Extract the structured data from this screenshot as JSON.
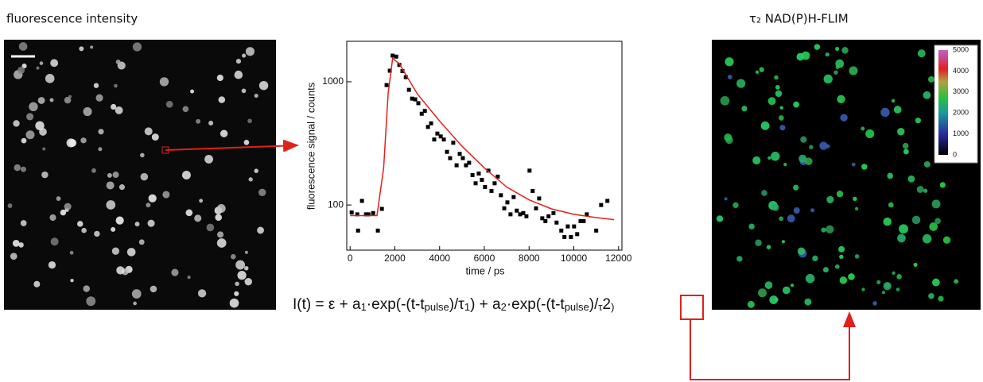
{
  "left_panel": {
    "title": "fluorescence intensity"
  },
  "right_panel": {
    "title": "τ₂ NAD(P)H-FLIM",
    "colorbar_ticks": [
      0,
      1000,
      2000,
      3000,
      4000,
      5000
    ]
  },
  "formula": [
    "I(t) = ε + a",
    "1",
    "·exp(-(t-t",
    "pulse",
    ")/τ",
    "1",
    ") + a",
    "2",
    "·exp(-(t-t",
    "pulse",
    ")/",
    "τ",
    "2",
    ")"
  ],
  "chart_data": {
    "type": "scatter",
    "xlabel": "time / ps",
    "ylabel": "fluorescence signal / counts",
    "xlim": [
      -150,
      12150
    ],
    "ylim": [
      43,
      2130
    ],
    "log_y": true,
    "xticks": [
      0,
      2000,
      4000,
      6000,
      8000,
      10000,
      12000
    ],
    "yticks": [
      100,
      1000
    ],
    "series": [
      {
        "type": "scatter",
        "color": "#000000",
        "x": [
          70,
          320,
          355,
          530,
          710,
          820,
          1030,
          1240,
          1420,
          1630,
          1775,
          1900,
          2060,
          2200,
          2340,
          2490,
          2630,
          2770,
          2910,
          3050,
          3200,
          3340,
          3480,
          3620,
          3760,
          3900,
          4050,
          4190,
          4330,
          4470,
          4610,
          4760,
          4900,
          5040,
          5180,
          5320,
          5470,
          5610,
          5750,
          5890,
          6030,
          6180,
          6320,
          6460,
          6600,
          6740,
          6890,
          7030,
          7170,
          7310,
          7450,
          7600,
          7740,
          7880,
          8020,
          8160,
          8310,
          8450,
          8590,
          8730,
          8870,
          9090,
          9230,
          9440,
          9580,
          9730,
          9870,
          10010,
          10150,
          10300,
          10440,
          10580,
          11000,
          11220,
          11500
        ],
        "values": [
          87,
          84,
          62,
          108,
          84,
          84,
          86,
          62,
          93,
          940,
          1230,
          1630,
          1600,
          1370,
          1220,
          1090,
          860,
          730,
          720,
          670,
          550,
          580,
          430,
          460,
          340,
          380,
          360,
          340,
          270,
          240,
          320,
          210,
          260,
          240,
          210,
          220,
          175,
          150,
          180,
          160,
          140,
          190,
          130,
          150,
          170,
          120,
          94,
          105,
          84,
          116,
          90,
          84,
          86,
          81,
          190,
          130,
          94,
          113,
          78,
          74,
          81,
          86,
          72,
          62,
          55,
          67,
          55,
          67,
          58,
          74,
          74,
          84,
          62,
          100,
          108
        ]
      },
      {
        "type": "line",
        "color": "#e0201b",
        "x": [
          0,
          1200,
          1500,
          1700,
          1900,
          2200,
          3000,
          4000,
          5000,
          6000,
          7000,
          8000,
          9000,
          10000,
          11000,
          11800
        ],
        "values": [
          82,
          82,
          200,
          800,
          1550,
          1400,
          800,
          480,
          300,
          200,
          140,
          110,
          93,
          84,
          79,
          76
        ]
      }
    ]
  }
}
